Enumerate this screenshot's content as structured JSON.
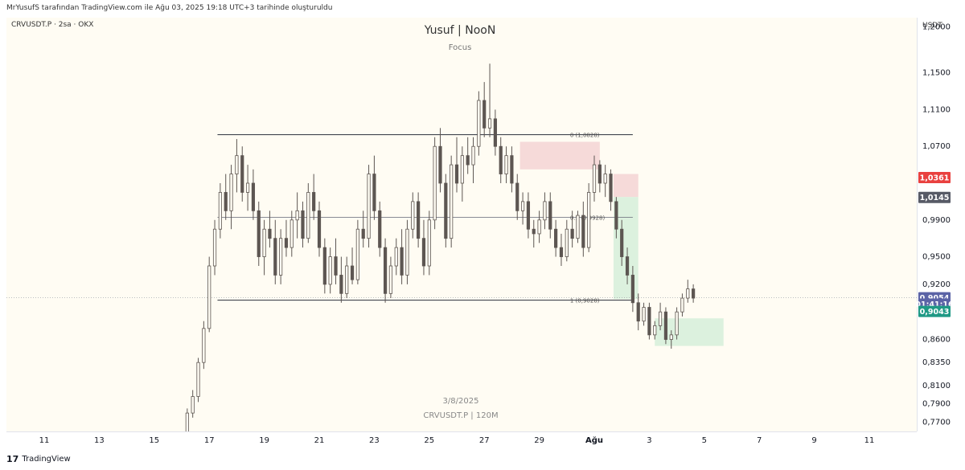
{
  "header": {
    "credit": "MrYusufS tarafından TradingView.com ile Ağu 03, 2025 19:18 UTC+3 tarihinde oluşturuldu",
    "symbol_line": "CRVUSDT.P · 2sa · OKX",
    "title": "Yusuf | NooN",
    "subtitle": "Focus"
  },
  "watermark": {
    "date": "3/8/2025",
    "symbol": "CRVUSDT.P | 120M"
  },
  "footer": {
    "logo": "17",
    "brand": "TradingView"
  },
  "colors": {
    "background": "#fffcf3",
    "candle": "#5d5652",
    "line": "#2a2e39",
    "red_zone": "#f5d6d6",
    "green_zone": "#d8efdc",
    "label_red": "#e9413f",
    "label_gray": "#575a66",
    "label_blue": "#5b63a6",
    "label_green": "#1f9985"
  },
  "chart_data": {
    "type": "candlestick",
    "currency": "USDT",
    "ylim": [
      0.76,
      1.21
    ],
    "y_ticks": [
      "1,2000",
      "1,1500",
      "1,1100",
      "1,0700",
      "0,9900",
      "0,9500",
      "0,9200",
      "0,8600",
      "0,8350",
      "0,8100",
      "0,7900",
      "0,7700"
    ],
    "y_tick_values": [
      1.2,
      1.15,
      1.11,
      1.07,
      0.99,
      0.95,
      0.92,
      0.86,
      0.835,
      0.81,
      0.79,
      0.77
    ],
    "x_ticks": [
      "11",
      "13",
      "15",
      "17",
      "19",
      "21",
      "23",
      "25",
      "27",
      "29",
      "Ağu",
      "3",
      "5",
      "7",
      "9",
      "11"
    ],
    "x_tick_days": [
      11,
      13,
      15,
      17,
      19,
      21,
      23,
      25,
      27,
      29,
      31,
      33,
      35,
      37,
      39,
      41
    ],
    "fib_levels": [
      {
        "label": "0 (1,0828)",
        "value": 1.0828
      },
      {
        "label": "0.5 (0,9928)",
        "value": 0.9928
      },
      {
        "label": "1 (0,9028)",
        "value": 0.9028
      }
    ],
    "fib_range_days": [
      17.3,
      32.4
    ],
    "price_labels": [
      {
        "text": "1,0361",
        "value": 1.0361,
        "color": "#e9413f"
      },
      {
        "text": "1,0145",
        "value": 1.0145,
        "color": "#575a66"
      },
      {
        "text": "0,9054",
        "value": 0.9054,
        "color": "#5b63a6"
      },
      {
        "text": "01:41:16",
        "value": 0.8985,
        "color": "#5b63a6"
      },
      {
        "text": "0,9043",
        "value": 0.8905,
        "color": "#1f9985"
      }
    ],
    "current_price": 0.9054,
    "zones": [
      {
        "type": "supply",
        "x0": 28.3,
        "x1": 31.2,
        "y0": 1.045,
        "y1": 1.075
      },
      {
        "type": "supply",
        "x0": 31.7,
        "x1": 32.6,
        "y0": 1.015,
        "y1": 1.04
      },
      {
        "type": "profit",
        "x0": 31.7,
        "x1": 32.6,
        "y0": 0.904,
        "y1": 1.015
      },
      {
        "type": "demand",
        "x0": 33.2,
        "x1": 35.7,
        "y0": 0.853,
        "y1": 0.883
      }
    ],
    "candles": [
      [
        16.0,
        0.745,
        0.76,
        0.744,
        0.758
      ],
      [
        16.2,
        0.758,
        0.785,
        0.756,
        0.78
      ],
      [
        16.4,
        0.78,
        0.805,
        0.775,
        0.798
      ],
      [
        16.6,
        0.798,
        0.84,
        0.792,
        0.835
      ],
      [
        16.8,
        0.835,
        0.88,
        0.828,
        0.872
      ],
      [
        17.0,
        0.872,
        0.95,
        0.868,
        0.94
      ],
      [
        17.2,
        0.94,
        0.99,
        0.93,
        0.98
      ],
      [
        17.4,
        0.98,
        1.03,
        0.97,
        1.02
      ],
      [
        17.6,
        1.02,
        1.04,
        0.99,
        1.0
      ],
      [
        17.8,
        1.0,
        1.05,
        0.98,
        1.04
      ],
      [
        18.0,
        1.04,
        1.078,
        1.02,
        1.06
      ],
      [
        18.2,
        1.06,
        1.07,
        1.01,
        1.02
      ],
      [
        18.4,
        1.02,
        1.05,
        1.0,
        1.03
      ],
      [
        18.6,
        1.03,
        1.045,
        0.99,
        1.0
      ],
      [
        18.8,
        1.0,
        1.01,
        0.94,
        0.95
      ],
      [
        19.0,
        0.95,
        0.99,
        0.93,
        0.98
      ],
      [
        19.2,
        0.98,
        1.0,
        0.96,
        0.97
      ],
      [
        19.4,
        0.97,
        0.99,
        0.92,
        0.93
      ],
      [
        19.6,
        0.93,
        0.98,
        0.92,
        0.97
      ],
      [
        19.8,
        0.97,
        0.99,
        0.95,
        0.96
      ],
      [
        20.0,
        0.96,
        1.0,
        0.95,
        0.99
      ],
      [
        20.2,
        0.99,
        1.02,
        0.97,
        1.0
      ],
      [
        20.4,
        1.0,
        1.01,
        0.96,
        0.97
      ],
      [
        20.6,
        0.97,
        1.03,
        0.965,
        1.02
      ],
      [
        20.8,
        1.02,
        1.04,
        0.99,
        1.0
      ],
      [
        21.0,
        1.0,
        1.01,
        0.95,
        0.96
      ],
      [
        21.2,
        0.96,
        0.97,
        0.91,
        0.92
      ],
      [
        21.4,
        0.92,
        0.96,
        0.91,
        0.95
      ],
      [
        21.6,
        0.95,
        0.97,
        0.92,
        0.93
      ],
      [
        21.8,
        0.93,
        0.95,
        0.9,
        0.91
      ],
      [
        22.0,
        0.91,
        0.95,
        0.905,
        0.94
      ],
      [
        22.2,
        0.94,
        0.96,
        0.92,
        0.925
      ],
      [
        22.4,
        0.925,
        0.99,
        0.92,
        0.98
      ],
      [
        22.6,
        0.98,
        1.0,
        0.96,
        0.97
      ],
      [
        22.8,
        0.97,
        1.05,
        0.96,
        1.04
      ],
      [
        23.0,
        1.04,
        1.06,
        0.99,
        1.0
      ],
      [
        23.2,
        1.0,
        1.01,
        0.95,
        0.96
      ],
      [
        23.4,
        0.96,
        0.97,
        0.9,
        0.91
      ],
      [
        23.6,
        0.91,
        0.95,
        0.905,
        0.94
      ],
      [
        23.8,
        0.94,
        0.97,
        0.93,
        0.96
      ],
      [
        24.0,
        0.96,
        0.98,
        0.92,
        0.93
      ],
      [
        24.2,
        0.93,
        0.99,
        0.92,
        0.98
      ],
      [
        24.4,
        0.98,
        1.02,
        0.97,
        1.01
      ],
      [
        24.6,
        1.01,
        1.02,
        0.96,
        0.97
      ],
      [
        24.8,
        0.97,
        0.99,
        0.93,
        0.94
      ],
      [
        25.0,
        0.94,
        1.0,
        0.93,
        0.99
      ],
      [
        25.2,
        0.99,
        1.08,
        0.98,
        1.07
      ],
      [
        25.4,
        1.07,
        1.09,
        1.02,
        1.03
      ],
      [
        25.6,
        1.03,
        1.04,
        0.96,
        0.97
      ],
      [
        25.8,
        0.97,
        1.06,
        0.96,
        1.05
      ],
      [
        26.0,
        1.05,
        1.08,
        1.02,
        1.03
      ],
      [
        26.2,
        1.03,
        1.07,
        1.01,
        1.06
      ],
      [
        26.4,
        1.06,
        1.08,
        1.04,
        1.05
      ],
      [
        26.6,
        1.05,
        1.08,
        1.03,
        1.07
      ],
      [
        26.8,
        1.07,
        1.13,
        1.06,
        1.12
      ],
      [
        27.0,
        1.12,
        1.14,
        1.08,
        1.09
      ],
      [
        27.2,
        1.09,
        1.16,
        1.08,
        1.1
      ],
      [
        27.4,
        1.1,
        1.11,
        1.06,
        1.07
      ],
      [
        27.6,
        1.07,
        1.08,
        1.03,
        1.04
      ],
      [
        27.8,
        1.04,
        1.07,
        1.03,
        1.06
      ],
      [
        28.0,
        1.06,
        1.07,
        1.02,
        1.03
      ],
      [
        28.2,
        1.03,
        1.04,
        0.99,
        1.0
      ],
      [
        28.4,
        1.0,
        1.02,
        0.985,
        1.01
      ],
      [
        28.6,
        1.01,
        1.02,
        0.97,
        0.98
      ],
      [
        28.8,
        0.98,
        0.99,
        0.96,
        0.975
      ],
      [
        29.0,
        0.975,
        1.0,
        0.965,
        0.99
      ],
      [
        29.2,
        0.99,
        1.02,
        0.98,
        1.01
      ],
      [
        29.4,
        1.01,
        1.02,
        0.97,
        0.98
      ],
      [
        29.6,
        0.98,
        0.99,
        0.95,
        0.96
      ],
      [
        29.8,
        0.96,
        0.975,
        0.94,
        0.95
      ],
      [
        30.0,
        0.95,
        0.99,
        0.945,
        0.98
      ],
      [
        30.2,
        0.98,
        1.0,
        0.96,
        0.97
      ],
      [
        30.4,
        0.97,
        1.0,
        0.965,
        0.995
      ],
      [
        30.6,
        0.995,
        1.01,
        0.95,
        0.96
      ],
      [
        30.8,
        0.96,
        1.03,
        0.955,
        1.02
      ],
      [
        31.0,
        1.02,
        1.06,
        1.01,
        1.05
      ],
      [
        31.2,
        1.05,
        1.055,
        1.02,
        1.03
      ],
      [
        31.4,
        1.03,
        1.05,
        1.015,
        1.04
      ],
      [
        31.6,
        1.04,
        1.045,
        1.0,
        1.01
      ],
      [
        31.8,
        1.01,
        1.015,
        0.97,
        0.98
      ],
      [
        32.0,
        0.98,
        0.99,
        0.94,
        0.95
      ],
      [
        32.2,
        0.95,
        0.96,
        0.92,
        0.93
      ],
      [
        32.4,
        0.93,
        0.94,
        0.89,
        0.9
      ],
      [
        32.6,
        0.9,
        0.91,
        0.87,
        0.88
      ],
      [
        32.8,
        0.88,
        0.9,
        0.875,
        0.895
      ],
      [
        33.0,
        0.895,
        0.9,
        0.86,
        0.865
      ],
      [
        33.2,
        0.865,
        0.88,
        0.86,
        0.875
      ],
      [
        33.4,
        0.875,
        0.9,
        0.87,
        0.89
      ],
      [
        33.6,
        0.89,
        0.895,
        0.855,
        0.86
      ],
      [
        33.8,
        0.86,
        0.87,
        0.85,
        0.865
      ],
      [
        34.0,
        0.865,
        0.895,
        0.86,
        0.89
      ],
      [
        34.2,
        0.89,
        0.91,
        0.885,
        0.905
      ],
      [
        34.4,
        0.905,
        0.925,
        0.9,
        0.915
      ],
      [
        34.6,
        0.915,
        0.92,
        0.9,
        0.905
      ]
    ]
  }
}
